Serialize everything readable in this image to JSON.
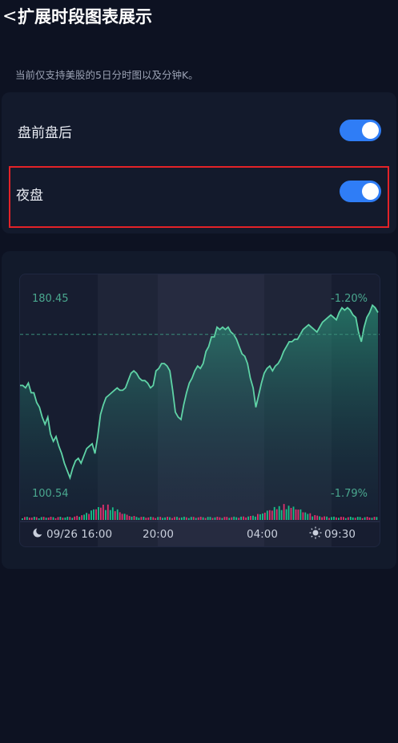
{
  "header": {
    "back_icon": "<",
    "title": "扩展时段图表展示"
  },
  "description": "当前仅支持美股的5日分时图以及分钟K。",
  "settings": [
    {
      "label": "盘前盘后",
      "enabled": true
    },
    {
      "label": "夜盘",
      "enabled": true
    }
  ],
  "colors": {
    "accent": "#2f7df6",
    "highlight": "#e32228",
    "line": "#5fd3a6",
    "up": "#18c08a",
    "down": "#e0306e"
  },
  "chart_data": {
    "type": "area",
    "price_high_label": "180.45",
    "price_low_label": "100.54",
    "pct_high_label": "-1.20%",
    "pct_low_label": "-1.79%",
    "x_ticks": [
      "09/26 16:00",
      "20:00",
      "04:00",
      "09:30"
    ],
    "sessions": [
      "after-hours",
      "overnight",
      "pre-market"
    ],
    "ylim": [
      100.54,
      180.45
    ],
    "values": [
      144,
      144,
      143,
      145,
      141,
      141,
      137,
      135,
      131,
      128,
      131,
      124,
      121,
      123,
      119,
      116,
      112,
      109,
      106,
      110,
      113,
      114,
      112,
      115,
      118,
      119,
      120,
      116,
      123,
      132,
      136,
      139,
      140,
      141,
      142,
      143,
      142,
      142,
      143,
      146,
      149,
      150,
      149,
      147,
      146,
      146,
      145,
      143,
      144,
      150,
      151,
      153,
      153,
      152,
      150,
      142,
      133,
      131,
      130,
      136,
      141,
      145,
      147,
      150,
      152,
      151,
      153,
      158,
      160,
      164,
      164,
      168,
      167,
      168,
      167,
      168,
      166,
      165,
      163,
      160,
      157,
      156,
      153,
      147,
      143,
      135,
      140,
      145,
      149,
      151,
      152,
      150,
      152,
      153,
      155,
      158,
      160,
      162,
      162,
      163,
      163,
      165,
      167,
      168,
      169,
      168,
      167,
      166,
      168,
      170,
      171,
      172,
      173,
      172,
      171,
      174,
      176,
      175,
      176,
      175,
      173,
      172,
      166,
      162,
      168,
      172,
      174,
      177,
      176,
      174
    ],
    "prev_close_value": 165
  }
}
